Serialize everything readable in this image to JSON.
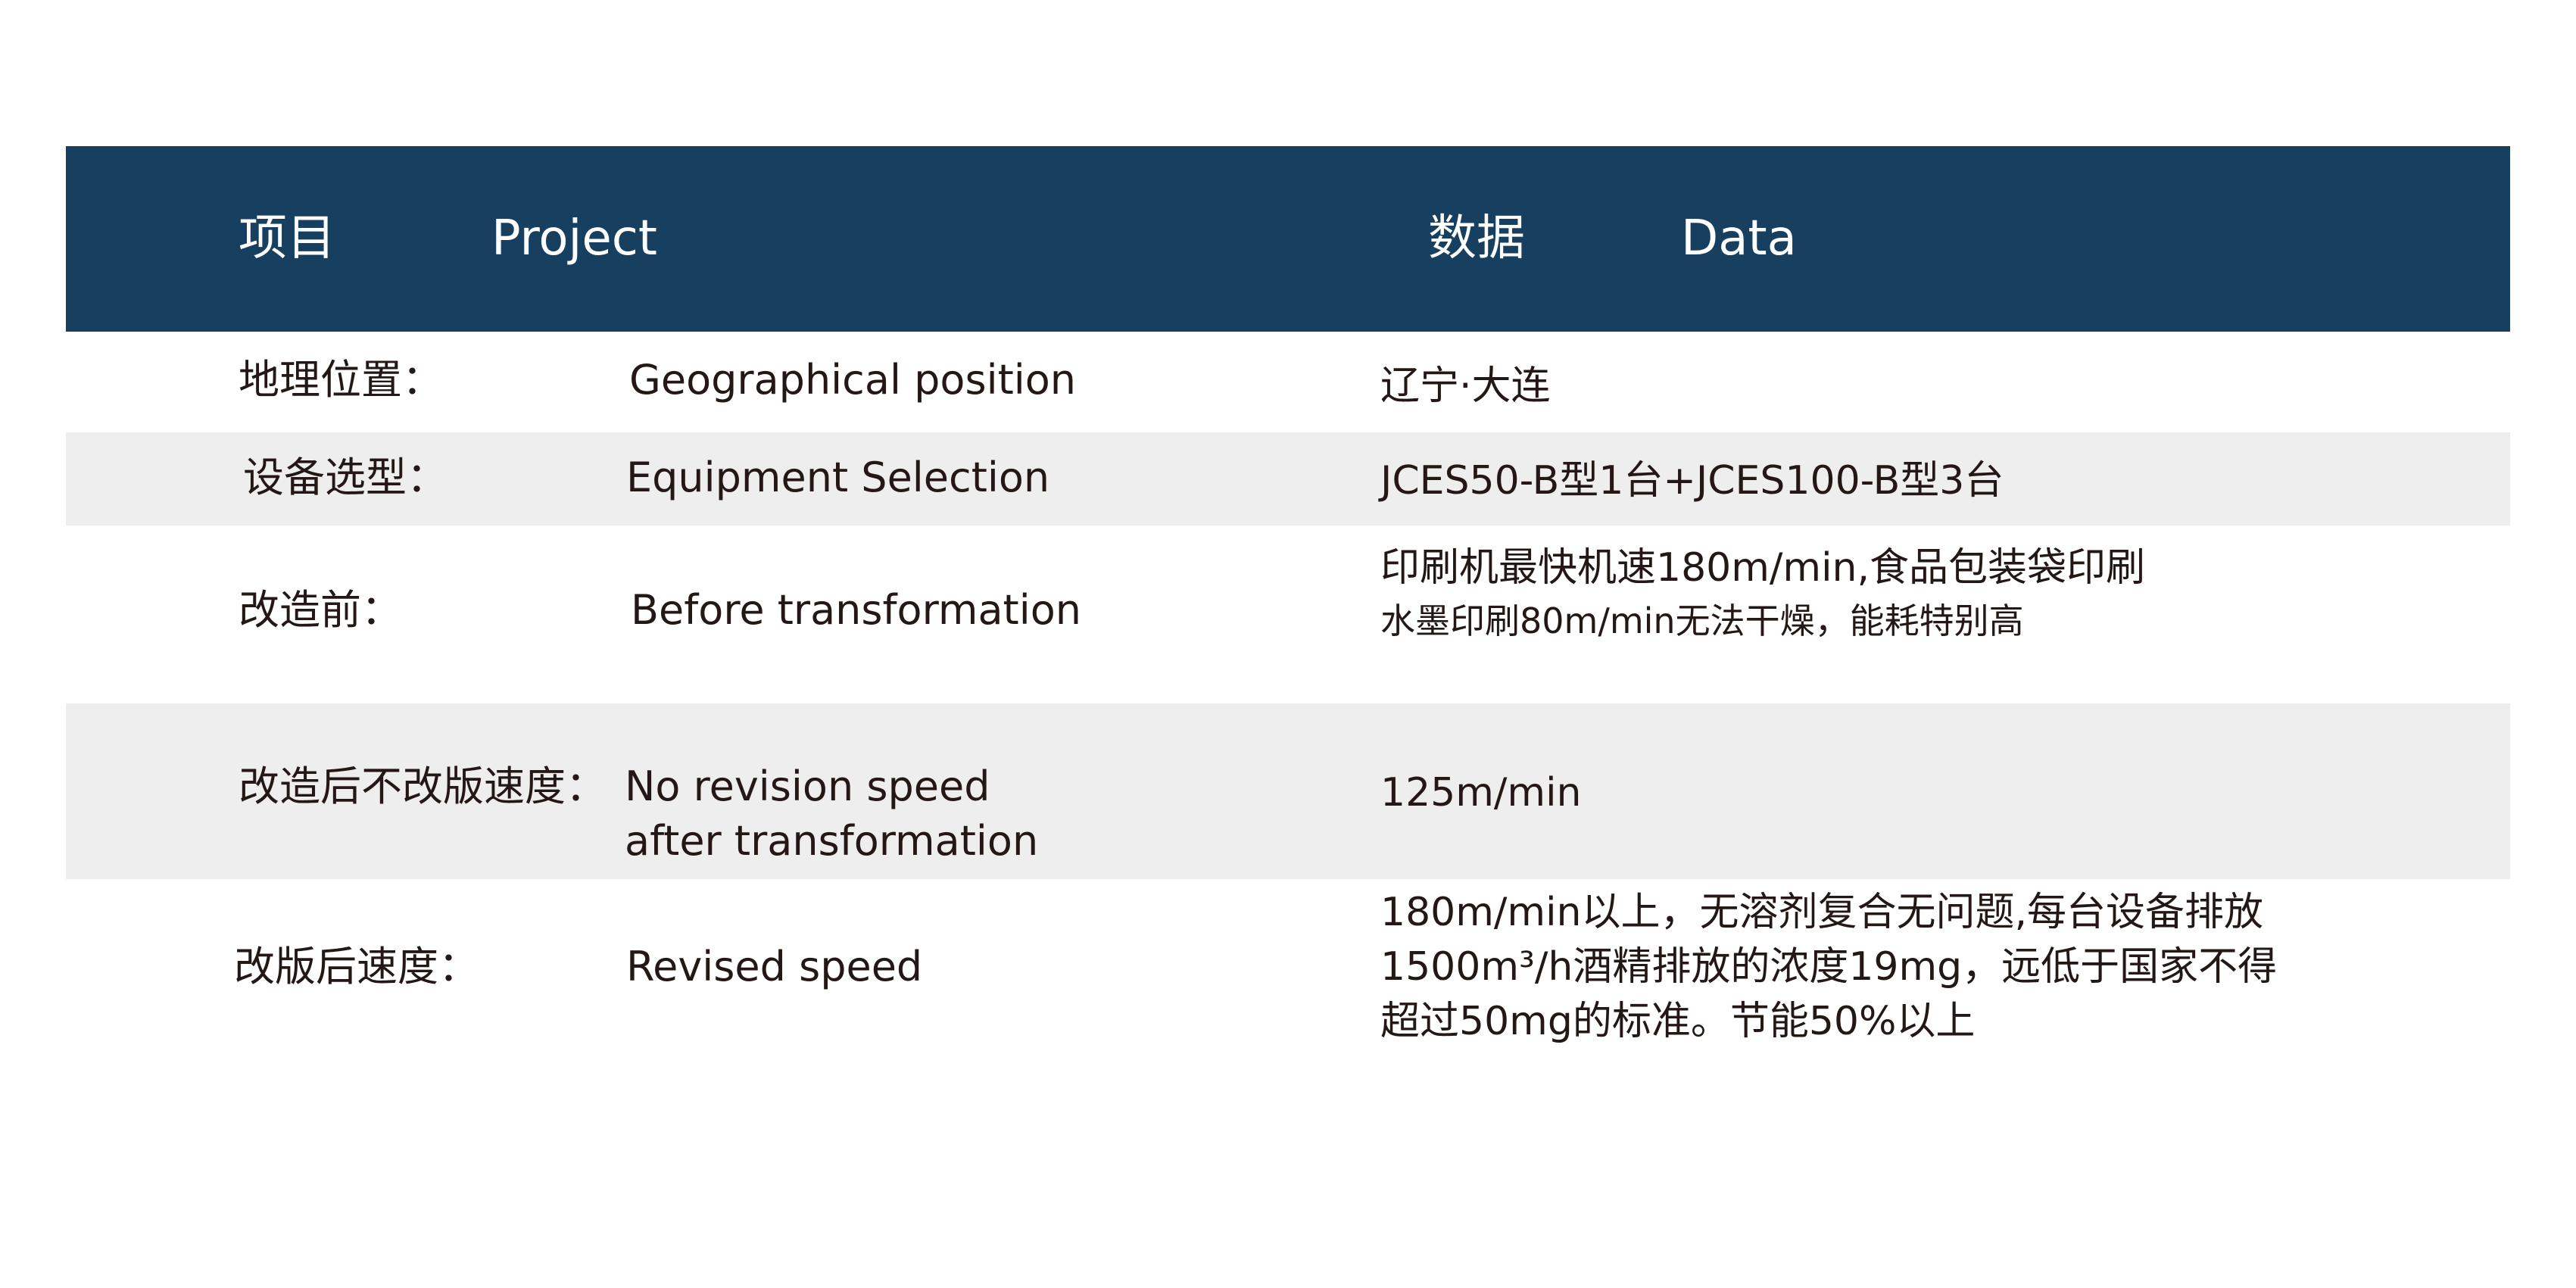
{
  "header": {
    "project_cn": "项目",
    "project_en": "Project",
    "data_cn": "数据",
    "data_en": "Data"
  },
  "header_color": "#173f5f",
  "rows": [
    {
      "label_cn": "地理位置：",
      "label_en": [
        "Geographical position"
      ],
      "data": [
        "辽宁·大连"
      ]
    },
    {
      "label_cn": "设备选型：",
      "label_en": [
        "Equipment Selection"
      ],
      "data": [
        "JCES50-B型1台+JCES100-B型3台"
      ]
    },
    {
      "label_cn": "改造前：",
      "label_en": [
        "Before transformation"
      ],
      "data": [
        "印刷机最快机速180m/min,食品包装袋印刷",
        "水墨印刷80m/min无法干燥，能耗特别高"
      ]
    },
    {
      "label_cn": "改造后不改版速度：",
      "label_en": [
        "No revision speed",
        "after transformation"
      ],
      "data": [
        "125m/min"
      ]
    },
    {
      "label_cn": "改版后速度：",
      "label_en": [
        "Revised speed"
      ],
      "data": [
        "180m/min以上，无溶剂复合无问题,每台设备排放",
        "1500m³/h酒精排放的浓度19mg，远低于国家不得",
        "超过50mg的标准。节能50%以上"
      ]
    }
  ]
}
